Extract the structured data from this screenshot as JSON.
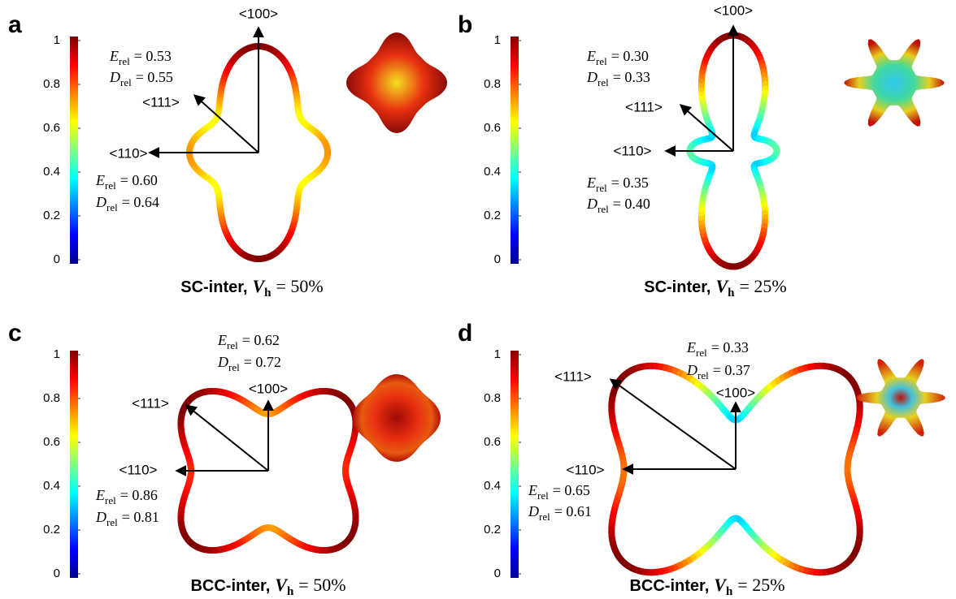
{
  "panels": [
    {
      "letter": "a",
      "colorbar_ticks": [
        0,
        0.2,
        0.4,
        0.6,
        0.8,
        1
      ],
      "directions": [
        "<100>",
        "<111>",
        "<110>"
      ],
      "annotations": [
        {
          "symbol": "E",
          "sub": "rel",
          "text": "= 0.53"
        },
        {
          "symbol": "D",
          "sub": "rel",
          "text": "= 0.55"
        },
        {
          "symbol": "E",
          "sub": "rel",
          "text": "= 0.60"
        },
        {
          "symbol": "D",
          "sub": "rel",
          "text": "= 0.64"
        }
      ],
      "title": {
        "text": "SC-inter,",
        "symbol": "V",
        "sub": "h",
        "value": "= 50%"
      }
    },
    {
      "letter": "b",
      "colorbar_ticks": [
        0,
        0.2,
        0.4,
        0.6,
        0.8,
        1
      ],
      "directions": [
        "<100>",
        "<111>",
        "<110>"
      ],
      "annotations": [
        {
          "symbol": "E",
          "sub": "rel",
          "text": "= 0.30"
        },
        {
          "symbol": "D",
          "sub": "rel",
          "text": "= 0.33"
        },
        {
          "symbol": "E",
          "sub": "rel",
          "text": "= 0.35"
        },
        {
          "symbol": "D",
          "sub": "rel",
          "text": "= 0.40"
        }
      ],
      "title": {
        "text": "SC-inter,",
        "symbol": "V",
        "sub": "h",
        "value": "= 25%"
      }
    },
    {
      "letter": "c",
      "colorbar_ticks": [
        0,
        0.2,
        0.4,
        0.6,
        0.8,
        1
      ],
      "directions": [
        "<100>",
        "<111>",
        "<110>"
      ],
      "annotations": [
        {
          "symbol": "E",
          "sub": "rel",
          "text": "= 0.62"
        },
        {
          "symbol": "D",
          "sub": "rel",
          "text": "= 0.72"
        },
        {
          "symbol": "E",
          "sub": "rel",
          "text": "= 0.86"
        },
        {
          "symbol": "D",
          "sub": "rel",
          "text": "= 0.81"
        }
      ],
      "title": {
        "text": "BCC-inter,",
        "symbol": "V",
        "sub": "h",
        "value": "= 50%"
      }
    },
    {
      "letter": "d",
      "colorbar_ticks": [
        0,
        0.2,
        0.4,
        0.6,
        0.8,
        1
      ],
      "directions": [
        "<100>",
        "<111>",
        "<110>"
      ],
      "annotations": [
        {
          "symbol": "E",
          "sub": "rel",
          "text": "= 0.33"
        },
        {
          "symbol": "D",
          "sub": "rel",
          "text": "= 0.37"
        },
        {
          "symbol": "E",
          "sub": "rel",
          "text": "= 0.65"
        },
        {
          "symbol": "D",
          "sub": "rel",
          "text": "= 0.61"
        }
      ],
      "title": {
        "text": "BCC-inter,",
        "symbol": "V",
        "sub": "h",
        "value": "= 25%"
      }
    }
  ]
}
